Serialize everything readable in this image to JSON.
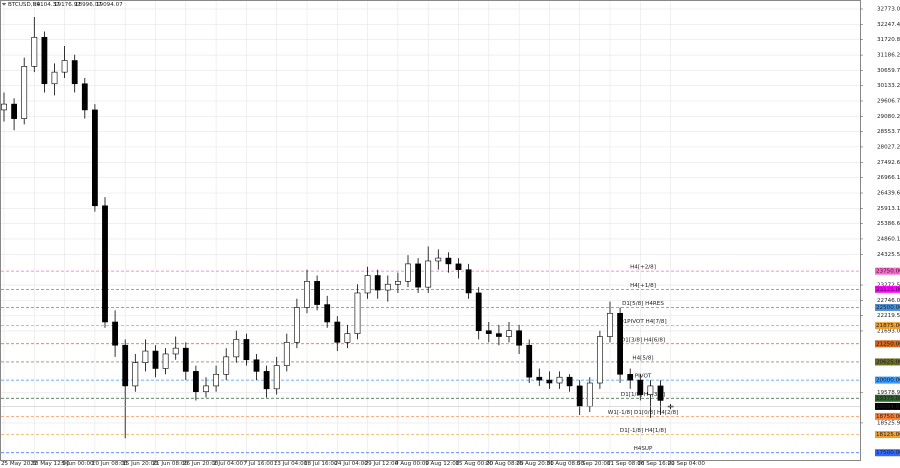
{
  "chart_data": {
    "type": "candlestick",
    "title": "BTCUSD,H4",
    "categories": [
      "25 May 2022",
      null,
      null,
      "30 May 12:00",
      null,
      null,
      "5 Jun 00:00",
      null,
      null,
      "10 Jun 08:00",
      null,
      null,
      "15 Jun 20:00",
      null,
      null,
      "21 Jun 08:00",
      null,
      null,
      "26 Jun 20:00",
      null,
      null,
      "2 Jul 04:00",
      null,
      null,
      "7 Jul 16:00",
      null,
      null,
      "13 Jul 04:00",
      null,
      null,
      "18 Jul 16:00",
      null,
      null,
      "24 Jul 04:00",
      null,
      null,
      "29 Jul 12:00",
      null,
      null,
      "4 Aug 00:00",
      null,
      null,
      "9 Aug 12:00",
      null,
      null,
      "15 Aug 00:00",
      null,
      null,
      "20 Aug 08:00",
      null,
      null,
      "25 Aug 20:00",
      null,
      null,
      "31 Aug 08:00",
      null,
      null,
      "5 Sep 20:00",
      null,
      null,
      "11 Sep 08:00",
      null,
      null,
      "16 Sep 16:00",
      null,
      null,
      "22 Sep 04:00"
    ],
    "open": [
      29300,
      29500,
      29000,
      30800,
      31800,
      30200,
      30600,
      31000,
      30200,
      29300,
      26000,
      22000,
      21200,
      19800,
      20600,
      21000,
      20400,
      20900,
      21100,
      20300,
      19600,
      19800,
      20200,
      20800,
      21400,
      20700,
      20300,
      19700,
      20500,
      21300,
      22500,
      23400,
      22600,
      22000,
      21300,
      21600,
      23000,
      23600,
      23100,
      23300,
      23400,
      24000,
      23200,
      24100,
      24200,
      24000,
      23800,
      23000,
      21700,
      21600,
      21500,
      21700,
      21200,
      20100,
      20000,
      19900,
      20100,
      19800,
      19100,
      19900,
      21500,
      22300,
      20200,
      20000,
      19500,
      19800,
      19104.37
    ],
    "high": [
      29900,
      29700,
      31100,
      32500,
      32000,
      30900,
      31500,
      31200,
      30400,
      29500,
      26300,
      22400,
      21400,
      20900,
      21400,
      21200,
      21100,
      21500,
      21300,
      20500,
      20100,
      20500,
      21100,
      21700,
      21600,
      20900,
      20500,
      20800,
      21600,
      22800,
      23800,
      23600,
      22900,
      22200,
      21900,
      23300,
      23900,
      23800,
      23600,
      23700,
      24300,
      24200,
      24600,
      24500,
      24400,
      24200,
      24000,
      23200,
      22000,
      21900,
      22000,
      21900,
      21400,
      20400,
      20300,
      20300,
      20200,
      20000,
      20100,
      21700,
      22700,
      22500,
      20400,
      20200,
      20000,
      20000,
      19176.97
    ],
    "low": [
      28900,
      28600,
      28800,
      30600,
      29900,
      29800,
      30400,
      29900,
      29000,
      25800,
      21800,
      20800,
      18000,
      19600,
      20300,
      20100,
      20200,
      20700,
      20000,
      19300,
      19400,
      19600,
      20000,
      20600,
      20500,
      20000,
      19400,
      19500,
      20300,
      21100,
      22300,
      22400,
      21800,
      21000,
      21100,
      21400,
      22800,
      22800,
      22700,
      23000,
      23200,
      23000,
      23000,
      23800,
      23700,
      23500,
      22800,
      21400,
      21300,
      21200,
      21300,
      20900,
      19900,
      19800,
      19700,
      19700,
      19600,
      18800,
      18900,
      19700,
      21300,
      19900,
      19700,
      19300,
      18700,
      18800,
      18996.07
    ],
    "close": [
      29500,
      29000,
      30800,
      31800,
      30200,
      30600,
      31000,
      30200,
      29300,
      26000,
      22000,
      21200,
      19800,
      20600,
      21000,
      20400,
      20900,
      21100,
      20300,
      19600,
      19800,
      20200,
      20800,
      21400,
      20700,
      20300,
      19700,
      20500,
      21300,
      22500,
      23400,
      22600,
      22000,
      21300,
      21600,
      23000,
      23600,
      23100,
      23300,
      23400,
      24000,
      23200,
      24100,
      24200,
      24000,
      23800,
      23000,
      21700,
      21600,
      21500,
      21700,
      21200,
      20100,
      20000,
      19900,
      20100,
      19800,
      19100,
      19900,
      21500,
      22300,
      20200,
      20000,
      19500,
      19800,
      19300,
      19094.07
    ],
    "ylim": [
      17250,
      33083
    ],
    "yticks": [
      {
        "value": 32773,
        "label": "32773.00"
      },
      {
        "value": 32247.4,
        "label": "32247.40"
      },
      {
        "value": 31720.8,
        "label": "31720.80"
      },
      {
        "value": 31186.2,
        "label": "31186.20"
      },
      {
        "value": 30659.7,
        "label": "30659.70"
      },
      {
        "value": 30133.2,
        "label": "30133.20"
      },
      {
        "value": 29606.7,
        "label": "29606.70"
      },
      {
        "value": 29080.2,
        "label": "29080.20"
      },
      {
        "value": 28553.7,
        "label": "28553.70"
      },
      {
        "value": 28027.2,
        "label": "28027.20"
      },
      {
        "value": 27492.6,
        "label": "27492.60"
      },
      {
        "value": 26966.1,
        "label": "26966.10"
      },
      {
        "value": 26439.6,
        "label": "26439.60"
      },
      {
        "value": 25913.1,
        "label": "25913.10"
      },
      {
        "value": 25386.6,
        "label": "25386.60"
      },
      {
        "value": 24860.1,
        "label": "24860.10"
      },
      {
        "value": 24325.5,
        "label": "24325.50"
      },
      {
        "value": 23272.5,
        "label": "23272.50"
      },
      {
        "value": 22746,
        "label": "22746.00"
      },
      {
        "value": 22219.5,
        "label": "22219.50"
      },
      {
        "value": 21693,
        "label": "21693.00"
      },
      {
        "value": 19578.9,
        "label": "19578.90"
      },
      {
        "value": 18525.9,
        "label": "18525.90"
      }
    ],
    "grid": true,
    "up_color": "#ffffff",
    "down_color": "#000000",
    "levels": [
      {
        "name": "H4[+2/8]",
        "value": 23750,
        "label": "23750.00",
        "color": "#ff66cc"
      },
      {
        "name": "H4[+1/8]",
        "value": 23125,
        "label": "23125.00",
        "color": "#ff00ff"
      },
      {
        "name": "D1[5/8] H4RES",
        "value": 22500,
        "label": "22500.00",
        "color": "#4d8fd6"
      },
      {
        "name": "D1PIVOT H4[7/8]",
        "value": 21875,
        "label": "21875.00",
        "color": "#f0a030"
      },
      {
        "name": "D1[3/8] H4[6/8]",
        "value": 21250,
        "label": "21250.00",
        "color": "#d2691e"
      },
      {
        "name": "H4[5/8]",
        "value": 20625,
        "label": "20625.00",
        "color": "#6b6b2a"
      },
      {
        "name": "PIVOT",
        "value": 20000,
        "label": "20000.00",
        "color": "#3399ff"
      },
      {
        "name": "D1[1/8] H4[3/8]",
        "value": 19375,
        "label": "19375.00",
        "color": "#2f5f2f"
      },
      {
        "name": "W1[-1/8] D1[0/8] H4[2/8]",
        "value": 18750,
        "label": "18750.00",
        "color": "#ff7f30"
      },
      {
        "name": "D1[-1/8] H4[1/8]",
        "value": 18125,
        "label": "18125.00",
        "color": "#f0a030"
      },
      {
        "name": "H4SUP",
        "value": 17500,
        "label": "17500.00",
        "color": "#3366ff"
      }
    ]
  }
}
